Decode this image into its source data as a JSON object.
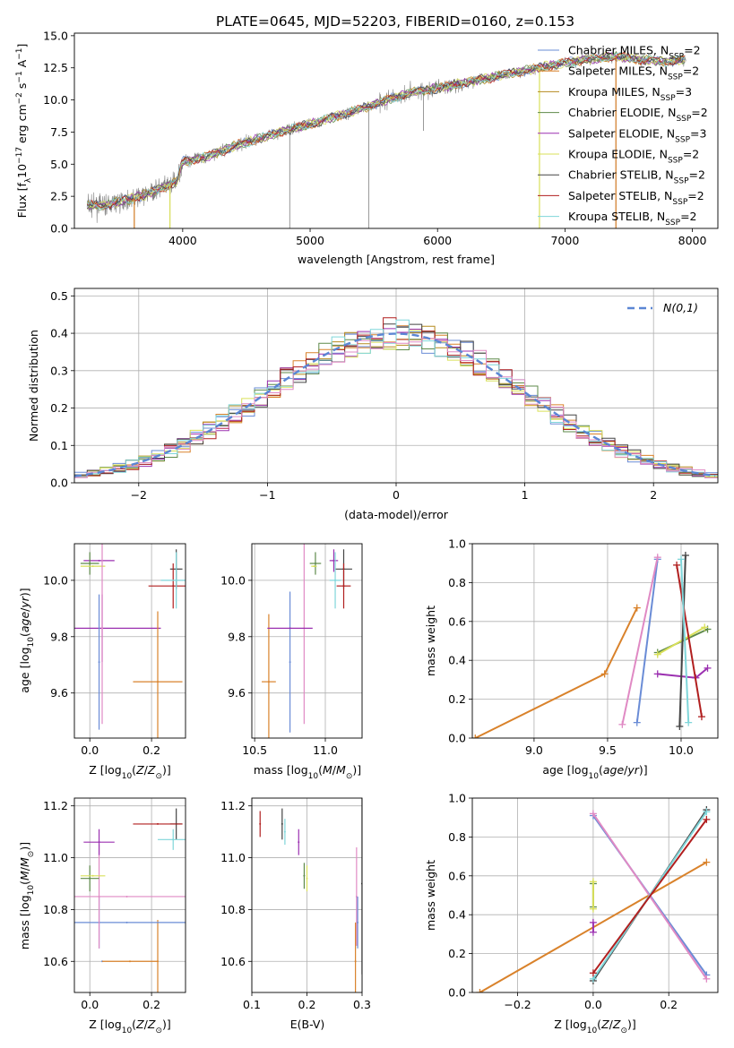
{
  "figure": {
    "title": "PLATE=0645, MJD=52203, FIBERID=0160, z=0.153"
  },
  "series_colors": [
    "#6a8cd6",
    "#d9822b",
    "#b58a1f",
    "#5e8a4a",
    "#9b30b0",
    "#d9e05a",
    "#444444",
    "#b11f1f",
    "#7fd6da"
  ],
  "chart_data": [
    {
      "id": "spectrum",
      "type": "line",
      "title": "PLATE=0645, MJD=52203, FIBERID=0160, z=0.153",
      "xlabel": "wavelength [Angstrom, rest frame]",
      "ylabel": "Flux [f_λ 10^-17 erg cm^-2 s^-1 A^-1]",
      "xlim": [
        3150,
        8200
      ],
      "ylim": [
        0,
        15.2
      ],
      "xticks": [
        4000,
        5000,
        6000,
        7000,
        8000
      ],
      "yticks": [
        0.0,
        2.5,
        5.0,
        7.5,
        10.0,
        12.5,
        15.0
      ],
      "legend_position": "upper right",
      "legend": [
        {
          "label": "Chabrier MILES, N",
          "sub": "SSP",
          "suffix": "=2",
          "color": "#6a8cd6"
        },
        {
          "label": "Salpeter MILES, N",
          "sub": "SSP",
          "suffix": "=2",
          "color": "#d9822b"
        },
        {
          "label": "Kroupa MILES, N",
          "sub": "SSP",
          "suffix": "=3",
          "color": "#b58a1f"
        },
        {
          "label": "Chabrier ELODIE, N",
          "sub": "SSP",
          "suffix": "=2",
          "color": "#5e8a4a"
        },
        {
          "label": "Salpeter ELODIE, N",
          "sub": "SSP",
          "suffix": "=3",
          "color": "#9b30b0"
        },
        {
          "label": "Kroupa ELODIE, N",
          "sub": "SSP",
          "suffix": "=2",
          "color": "#d9e05a"
        },
        {
          "label": "Chabrier STELIB, N",
          "sub": "SSP",
          "suffix": "=2",
          "color": "#444444"
        },
        {
          "label": "Salpeter STELIB, N",
          "sub": "SSP",
          "suffix": "=2",
          "color": "#b11f1f"
        },
        {
          "label": "Kroupa STELIB, N",
          "sub": "SSP",
          "suffix": "=2",
          "color": "#7fd6da"
        }
      ],
      "data_color": "#808080",
      "continuum_points": [
        [
          3250,
          1.8
        ],
        [
          3400,
          1.8
        ],
        [
          3550,
          2.2
        ],
        [
          3700,
          2.6
        ],
        [
          3850,
          3.2
        ],
        [
          3950,
          3.6
        ],
        [
          4000,
          5.2
        ],
        [
          4200,
          5.6
        ],
        [
          4400,
          6.4
        ],
        [
          4600,
          7.0
        ],
        [
          4800,
          7.6
        ],
        [
          5000,
          8.1
        ],
        [
          5200,
          8.7
        ],
        [
          5400,
          9.3
        ],
        [
          5600,
          10.0
        ],
        [
          5800,
          10.6
        ],
        [
          6000,
          10.9
        ],
        [
          6200,
          11.3
        ],
        [
          6400,
          11.7
        ],
        [
          6600,
          12.1
        ],
        [
          6800,
          12.5
        ],
        [
          7000,
          12.9
        ],
        [
          7200,
          13.2
        ],
        [
          7400,
          13.4
        ],
        [
          7600,
          13.1
        ],
        [
          7800,
          13.0
        ],
        [
          7950,
          13.1
        ]
      ],
      "spikes": [
        [
          4840,
          0.0
        ],
        [
          5460,
          0.0
        ],
        [
          5890,
          7.6
        ],
        [
          3620,
          0.0
        ],
        [
          3900,
          0.0
        ],
        [
          7400,
          0.0
        ],
        [
          6800,
          0.0
        ]
      ]
    },
    {
      "id": "residuals",
      "type": "step-histogram",
      "xlabel": "(data-model)/error",
      "ylabel": "Normed distribution",
      "xlim": [
        -2.5,
        2.5
      ],
      "ylim": [
        0,
        0.52
      ],
      "xticks": [
        -2,
        -1,
        0,
        1,
        2
      ],
      "yticks": [
        0.0,
        0.1,
        0.2,
        0.3,
        0.4,
        0.5
      ],
      "legend_position": "upper right",
      "reference_label": "N(0,1)",
      "reference_color": "#5b86d4",
      "bin_edges_start": -2.5,
      "bin_width": 0.1,
      "grid": true
    },
    {
      "id": "age-vs-Z",
      "type": "errorbar",
      "xlabel": "Z [log10(Z/Z_sun)]",
      "ylabel": "age [log10(age/yr)]",
      "xlim": [
        -0.05,
        0.31
      ],
      "ylim": [
        9.44,
        10.13
      ],
      "xticks": [
        0.0,
        0.2
      ],
      "yticks": [
        9.6,
        9.8,
        10.0
      ],
      "points": [
        {
          "x": 0.04,
          "y": 9.83,
          "xerr": 0.19,
          "yerr": 0.12,
          "color": "#9b30b0"
        },
        {
          "x": 0.03,
          "y": 9.71,
          "xerr": 0.0,
          "yerr": 0.24,
          "color": "#6a8cd6"
        },
        {
          "x": 0.22,
          "y": 9.64,
          "xerr": 0.08,
          "yerr": 0.25,
          "color": "#d9822b"
        },
        {
          "x": 0.03,
          "y": 10.07,
          "xerr": 0.05,
          "yerr": 0.0,
          "color": "#9b30b0"
        },
        {
          "x": 0.0,
          "y": 10.06,
          "xerr": 0.03,
          "yerr": 0.04,
          "color": "#5e8a4a"
        },
        {
          "x": 0.01,
          "y": 10.05,
          "xerr": 0.04,
          "yerr": 0.0,
          "color": "#d9e05a"
        },
        {
          "x": 0.28,
          "y": 10.04,
          "xerr": 0.02,
          "yerr": 0.07,
          "color": "#444444"
        },
        {
          "x": 0.27,
          "y": 9.98,
          "xerr": 0.08,
          "yerr": 0.08,
          "color": "#b11f1f"
        },
        {
          "x": 0.28,
          "y": 10.0,
          "xerr": 0.05,
          "yerr": 0.1,
          "color": "#7fd6da"
        },
        {
          "x": 0.04,
          "y": 9.83,
          "xerr": 0.0,
          "yerr": 0.34,
          "color": "#e08ac4"
        }
      ]
    },
    {
      "id": "age-vs-mass",
      "type": "errorbar",
      "xlabel": "mass [log10(M/M_sun)]",
      "xlim": [
        10.48,
        11.26
      ],
      "ylim": [
        9.44,
        10.13
      ],
      "xticks": [
        10.5,
        11.0
      ],
      "yticks": [
        9.6,
        9.8,
        10.0
      ],
      "points": [
        {
          "x": 10.6,
          "y": 9.64,
          "xerr": 0.05,
          "yerr": 0.24,
          "color": "#d9822b"
        },
        {
          "x": 10.75,
          "y": 9.71,
          "xerr": 0.0,
          "yerr": 0.25,
          "color": "#6a8cd6"
        },
        {
          "x": 10.85,
          "y": 9.83,
          "xerr": 0.0,
          "yerr": 0.34,
          "color": "#e08ac4"
        },
        {
          "x": 10.75,
          "y": 9.83,
          "xerr": 0.16,
          "yerr": 0.0,
          "color": "#9b30b0"
        },
        {
          "x": 10.93,
          "y": 10.06,
          "xerr": 0.04,
          "yerr": 0.04,
          "color": "#5e8a4a"
        },
        {
          "x": 10.92,
          "y": 10.05,
          "xerr": 0.02,
          "yerr": 0.0,
          "color": "#d9e05a"
        },
        {
          "x": 11.06,
          "y": 10.07,
          "xerr": 0.03,
          "yerr": 0.04,
          "color": "#9b30b0"
        },
        {
          "x": 11.13,
          "y": 10.04,
          "xerr": 0.06,
          "yerr": 0.07,
          "color": "#444444"
        },
        {
          "x": 11.13,
          "y": 9.98,
          "xerr": 0.05,
          "yerr": 0.08,
          "color": "#b11f1f"
        },
        {
          "x": 11.07,
          "y": 10.0,
          "xerr": 0.04,
          "yerr": 0.1,
          "color": "#7fd6da"
        }
      ]
    },
    {
      "id": "massweight-vs-age",
      "type": "line",
      "xlabel": "age [log10(age/yr)]",
      "ylabel": "mass weight",
      "xlim": [
        8.58,
        10.25
      ],
      "ylim": [
        0,
        1.0
      ],
      "xticks": [
        9.0,
        9.5,
        10.0
      ],
      "yticks": [
        0.0,
        0.2,
        0.4,
        0.6,
        0.8,
        1.0
      ],
      "series": [
        {
          "color": "#d9822b",
          "points": [
            [
              8.6,
              0.0
            ],
            [
              9.48,
              0.33
            ],
            [
              9.7,
              0.67
            ]
          ]
        },
        {
          "color": "#6a8cd6",
          "points": [
            [
              9.7,
              0.08
            ],
            [
              9.84,
              0.92
            ]
          ]
        },
        {
          "color": "#e08ac4",
          "points": [
            [
              9.6,
              0.07
            ],
            [
              9.84,
              0.93
            ]
          ]
        },
        {
          "color": "#5e8a4a",
          "points": [
            [
              9.84,
              0.44
            ],
            [
              10.18,
              0.56
            ]
          ]
        },
        {
          "color": "#d9e05a",
          "points": [
            [
              9.84,
              0.43
            ],
            [
              10.16,
              0.57
            ]
          ]
        },
        {
          "color": "#9b30b0",
          "points": [
            [
              9.84,
              0.33
            ],
            [
              10.1,
              0.31
            ],
            [
              10.18,
              0.36
            ]
          ]
        },
        {
          "color": "#444444",
          "points": [
            [
              9.99,
              0.06
            ],
            [
              10.03,
              0.94
            ]
          ]
        },
        {
          "color": "#b11f1f",
          "points": [
            [
              9.97,
              0.89
            ],
            [
              10.14,
              0.11
            ]
          ]
        },
        {
          "color": "#7fd6da",
          "points": [
            [
              10.05,
              0.08
            ],
            [
              10.0,
              0.92
            ]
          ]
        }
      ]
    },
    {
      "id": "mass-vs-Z",
      "type": "errorbar",
      "xlabel": "Z [log10(Z/Z_sun)]",
      "ylabel": "mass [log10(M/M_sun)]",
      "xlim": [
        -0.05,
        0.31
      ],
      "ylim": [
        10.48,
        11.23
      ],
      "xticks": [
        0.0,
        0.2
      ],
      "yticks": [
        10.6,
        10.8,
        11.0,
        11.2
      ],
      "points": [
        {
          "x": 0.04,
          "y": 10.6,
          "xerr": 0.0,
          "yerr": 0.0,
          "color": "#6a8cd6"
        },
        {
          "x": 0.13,
          "y": 10.6,
          "xerr": 0.09,
          "yerr": 0.0,
          "color": "#d9822b"
        },
        {
          "x": 0.22,
          "y": 10.6,
          "xerr": 0.0,
          "yerr": 0.16,
          "color": "#d9822b"
        },
        {
          "x": 0.03,
          "y": 10.75,
          "xerr": 0.0,
          "yerr": 0.1,
          "color": "#6a8cd6"
        },
        {
          "x": 0.12,
          "y": 10.75,
          "xerr": 0.19,
          "yerr": 0.0,
          "color": "#6a8cd6"
        },
        {
          "x": 0.12,
          "y": 10.85,
          "xerr": 0.19,
          "yerr": 0.0,
          "color": "#e08ac4"
        },
        {
          "x": 0.03,
          "y": 10.85,
          "xerr": 0.0,
          "yerr": 0.2,
          "color": "#e08ac4"
        },
        {
          "x": 0.0,
          "y": 10.92,
          "xerr": 0.03,
          "yerr": 0.05,
          "color": "#5e8a4a"
        },
        {
          "x": 0.01,
          "y": 10.93,
          "xerr": 0.04,
          "yerr": 0.0,
          "color": "#d9e05a"
        },
        {
          "x": 0.03,
          "y": 11.06,
          "xerr": 0.05,
          "yerr": 0.05,
          "color": "#9b30b0"
        },
        {
          "x": 0.28,
          "y": 11.13,
          "xerr": 0.02,
          "yerr": 0.06,
          "color": "#444444"
        },
        {
          "x": 0.22,
          "y": 11.13,
          "xerr": 0.08,
          "yerr": 0.0,
          "color": "#b11f1f"
        },
        {
          "x": 0.27,
          "y": 11.07,
          "xerr": 0.05,
          "yerr": 0.04,
          "color": "#7fd6da"
        }
      ]
    },
    {
      "id": "mass-vs-ebv",
      "type": "errorbar",
      "xlabel": "E(B-V)",
      "xlim": [
        0.1,
        0.3
      ],
      "ylim": [
        10.48,
        11.23
      ],
      "xticks": [
        0.1,
        0.2,
        0.3
      ],
      "yticks": [
        10.6,
        10.8,
        11.0,
        11.2
      ],
      "points": [
        {
          "x": 0.115,
          "y": 11.13,
          "xerr": 0.0,
          "yerr": 0.05,
          "color": "#b11f1f"
        },
        {
          "x": 0.155,
          "y": 11.13,
          "xerr": 0.0,
          "yerr": 0.06,
          "color": "#444444"
        },
        {
          "x": 0.16,
          "y": 11.1,
          "xerr": 0.0,
          "yerr": 0.05,
          "color": "#7fd6da"
        },
        {
          "x": 0.185,
          "y": 11.06,
          "xerr": 0.0,
          "yerr": 0.05,
          "color": "#9b30b0"
        },
        {
          "x": 0.195,
          "y": 10.93,
          "xerr": 0.0,
          "yerr": 0.05,
          "color": "#5e8a4a"
        },
        {
          "x": 0.2,
          "y": 10.92,
          "xerr": 0.0,
          "yerr": 0.05,
          "color": "#d9e05a"
        },
        {
          "x": 0.29,
          "y": 10.85,
          "xerr": 0.0,
          "yerr": 0.19,
          "color": "#e08ac4"
        },
        {
          "x": 0.292,
          "y": 10.75,
          "xerr": 0.0,
          "yerr": 0.1,
          "color": "#6a8cd6"
        },
        {
          "x": 0.288,
          "y": 10.6,
          "xerr": 0.0,
          "yerr": 0.15,
          "color": "#d9822b"
        },
        {
          "x": 0.3,
          "y": 10.9,
          "xerr": 0.0,
          "yerr": 0.35,
          "color": "#444444"
        }
      ]
    },
    {
      "id": "massweight-vs-Z",
      "type": "line",
      "xlabel": "Z [log10(Z/Z_sun)]",
      "ylabel": "mass weight",
      "xlim": [
        -0.32,
        0.33
      ],
      "ylim": [
        0,
        1.0
      ],
      "xticks": [
        -0.2,
        0.0,
        0.2
      ],
      "yticks": [
        0.0,
        0.2,
        0.4,
        0.6,
        0.8,
        1.0
      ],
      "series": [
        {
          "color": "#d9822b",
          "points": [
            [
              -0.3,
              0.0
            ],
            [
              0.3,
              0.67
            ]
          ]
        },
        {
          "color": "#6a8cd6",
          "points": [
            [
              0.0,
              0.91
            ],
            [
              0.3,
              0.09
            ]
          ]
        },
        {
          "color": "#e08ac4",
          "points": [
            [
              0.0,
              0.92
            ],
            [
              0.3,
              0.07
            ]
          ]
        },
        {
          "color": "#444444",
          "points": [
            [
              0.0,
              0.06
            ],
            [
              0.3,
              0.94
            ]
          ]
        },
        {
          "color": "#7fd6da",
          "points": [
            [
              0.0,
              0.07
            ],
            [
              0.3,
              0.93
            ]
          ]
        },
        {
          "color": "#b11f1f",
          "points": [
            [
              0.0,
              0.1
            ],
            [
              0.3,
              0.89
            ]
          ]
        },
        {
          "color": "#5e8a4a",
          "points": [
            [
              0.0,
              0.44
            ],
            [
              0.0,
              0.56
            ]
          ]
        },
        {
          "color": "#d9e05a",
          "points": [
            [
              0.0,
              0.43
            ],
            [
              0.0,
              0.57
            ]
          ]
        },
        {
          "color": "#9b30b0",
          "points": [
            [
              0.0,
              0.31
            ],
            [
              0.0,
              0.36
            ]
          ]
        }
      ]
    }
  ]
}
